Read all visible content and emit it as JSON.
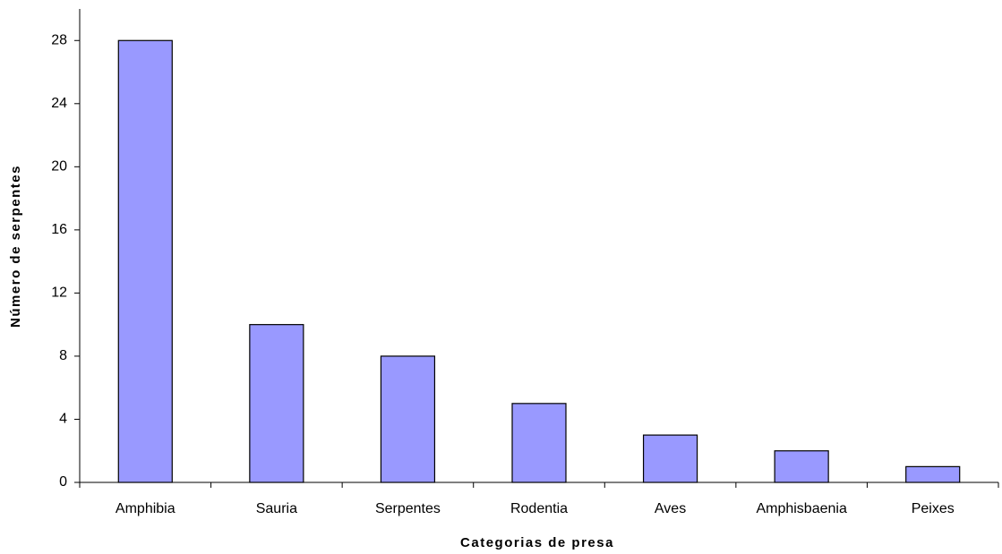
{
  "chart_data": {
    "type": "bar",
    "categories": [
      "Amphibia",
      "Sauria",
      "Serpentes",
      "Rodentia",
      "Aves",
      "Amphisbaenia",
      "Peixes"
    ],
    "values": [
      28,
      10,
      8,
      5,
      3,
      2,
      1
    ],
    "color": "#9999ff",
    "ylim": [
      0,
      30
    ],
    "yticks": [
      0,
      4,
      8,
      12,
      16,
      20,
      24,
      28
    ],
    "grid": false,
    "x_label": "Categorias de presa",
    "y_label": "Número de serpentes"
  }
}
